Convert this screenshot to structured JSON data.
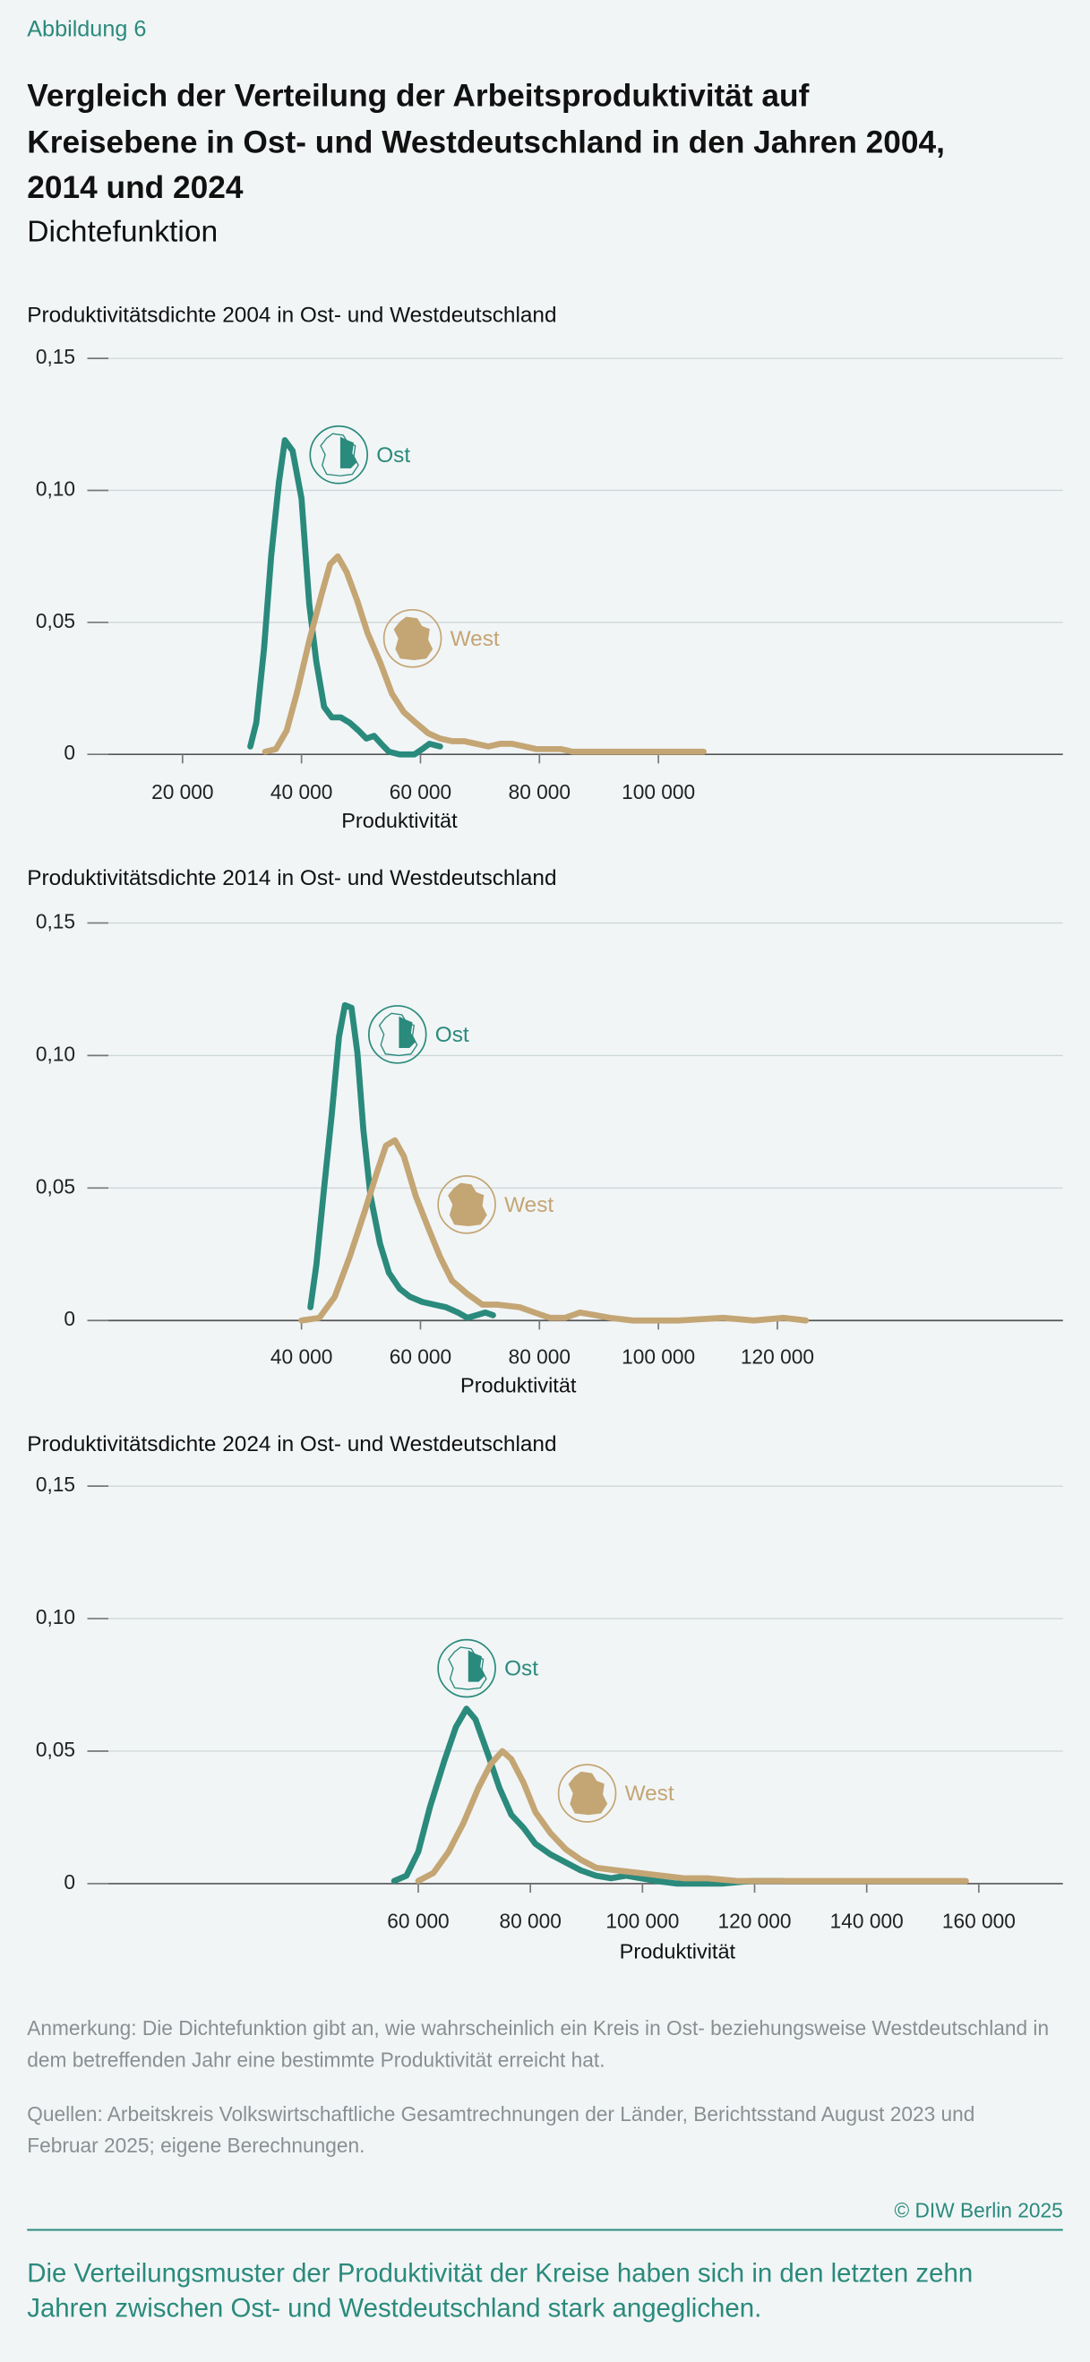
{
  "figure_label": "Abbildung 6",
  "title_lines": [
    "Vergleich der Verteilung der Arbeitsproduktivität auf",
    "Kreisebene in Ost- und Westdeutschland in den Jahren 2004,",
    "2014 und 2024"
  ],
  "subtitle": "Dichtefunktion",
  "chart_data": [
    {
      "type": "line",
      "title": "Produktivitätsdichte 2004 in Ost- und Westdeutschland",
      "xlabel": "Produktivität",
      "xlim": [
        4500,
        168000
      ],
      "ylim": [
        0,
        0.15
      ],
      "xticks": [
        {
          "value": 20000,
          "label": "20 000"
        },
        {
          "value": 40000,
          "label": "40 000"
        },
        {
          "value": 60000,
          "label": "60 000"
        },
        {
          "value": 80000,
          "label": "80 000"
        },
        {
          "value": 100000,
          "label": "100 000"
        }
      ],
      "yticks": [
        0,
        {
          "value": 0.05,
          "label": "0,05"
        },
        {
          "value": 0.1,
          "label": "0,10"
        },
        {
          "value": 0.15,
          "label": "0,15"
        }
      ],
      "grid": true,
      "series": [
        {
          "name": "Ost",
          "color": "#2a8a7c",
          "x": [
            31400,
            32400,
            33700,
            34900,
            36200,
            37200,
            38500,
            40000,
            41300,
            42500,
            43800,
            45100,
            46600,
            48100,
            49600,
            50900,
            52200,
            53400,
            54700,
            56500,
            59000,
            60300,
            61500,
            63300
          ],
          "values": [
            0.003,
            0.012,
            0.04,
            0.075,
            0.103,
            0.119,
            0.115,
            0.097,
            0.057,
            0.035,
            0.018,
            0.014,
            0.014,
            0.012,
            0.009,
            0.006,
            0.007,
            0.004,
            0.001,
            0,
            0,
            0.002,
            0.004,
            0.003
          ]
        },
        {
          "name": "West",
          "color": "#c4a574",
          "x": [
            33900,
            35700,
            37500,
            39200,
            41300,
            43300,
            44800,
            46100,
            47600,
            49400,
            51100,
            53200,
            55200,
            57200,
            59200,
            61300,
            63300,
            65300,
            67300,
            69400,
            71400,
            73400,
            75400,
            77500,
            79500,
            81500,
            83600,
            85600,
            90600,
            98200,
            103300,
            105800,
            107600
          ],
          "values": [
            0.001,
            0.002,
            0.009,
            0.023,
            0.043,
            0.06,
            0.072,
            0.075,
            0.069,
            0.058,
            0.046,
            0.035,
            0.023,
            0.016,
            0.012,
            0.008,
            0.006,
            0.005,
            0.005,
            0.004,
            0.003,
            0.004,
            0.004,
            0.003,
            0.002,
            0.002,
            0.002,
            0.001,
            0.001,
            0.001,
            0.001,
            0.001,
            0.001
          ]
        }
      ]
    },
    {
      "type": "line",
      "title": "Produktivitätsdichte 2014 in Ost- und Westdeutschland",
      "xlabel": "Produktivität",
      "xlim": [
        4500,
        168000
      ],
      "ylim": [
        0,
        0.15
      ],
      "xticks": [
        {
          "value": 40000,
          "label": "40 000"
        },
        {
          "value": 60000,
          "label": "60 000"
        },
        {
          "value": 80000,
          "label": "80 000"
        },
        {
          "value": 100000,
          "label": "100 000"
        },
        {
          "value": 120000,
          "label": "120 000"
        }
      ],
      "yticks": [
        0,
        {
          "value": 0.05,
          "label": "0,05"
        },
        {
          "value": 0.1,
          "label": "0,10"
        },
        {
          "value": 0.15,
          "label": "0,15"
        }
      ],
      "grid": true,
      "series": [
        {
          "name": "Ost",
          "color": "#2a8a7c",
          "x": [
            41500,
            42500,
            43800,
            45100,
            46300,
            47300,
            48400,
            49400,
            50400,
            51600,
            53200,
            54700,
            56500,
            58200,
            60300,
            62300,
            64300,
            66300,
            67900,
            69400,
            70900,
            72200
          ],
          "values": [
            0.005,
            0.021,
            0.05,
            0.078,
            0.107,
            0.119,
            0.118,
            0.101,
            0.072,
            0.047,
            0.029,
            0.018,
            0.012,
            0.009,
            0.007,
            0.006,
            0.005,
            0.003,
            0.001,
            0.002,
            0.003,
            0.002
          ]
        },
        {
          "name": "West",
          "color": "#c4a574",
          "x": [
            40000,
            43000,
            45600,
            48100,
            50600,
            52700,
            54200,
            55700,
            57200,
            59200,
            61300,
            63300,
            65300,
            67900,
            70400,
            72900,
            76700,
            79200,
            81800,
            84300,
            86800,
            89400,
            91900,
            95700,
            103300,
            110900,
            116000,
            121100,
            124800
          ],
          "values": [
            0,
            0.001,
            0.009,
            0.024,
            0.041,
            0.056,
            0.066,
            0.068,
            0.062,
            0.047,
            0.035,
            0.024,
            0.015,
            0.01,
            0.006,
            0.006,
            0.005,
            0.003,
            0.001,
            0.001,
            0.003,
            0.002,
            0.001,
            0,
            0,
            0.001,
            0,
            0.001,
            0
          ]
        }
      ]
    },
    {
      "type": "line",
      "title": "Produktivitätsdichte 2024 in Ost- und Westdeutschland",
      "xlabel": "Produktivität",
      "xlim": [
        1500,
        175000
      ],
      "ylim": [
        0,
        0.15
      ],
      "xticks": [
        {
          "value": 60000,
          "label": "60 000"
        },
        {
          "value": 80000,
          "label": "80 000"
        },
        {
          "value": 100000,
          "label": "100 000"
        },
        {
          "value": 120000,
          "label": "120 000"
        },
        {
          "value": 140000,
          "label": "140 000"
        },
        {
          "value": 160000,
          "label": "160 000"
        }
      ],
      "yticks": [
        0,
        {
          "value": 0.05,
          "label": "0,05"
        },
        {
          "value": 0.1,
          "label": "0,10"
        },
        {
          "value": 0.15,
          "label": "0,15"
        }
      ],
      "grid": true,
      "series": [
        {
          "name": "Ost",
          "color": "#2a8a7c",
          "x": [
            55700,
            57900,
            60000,
            62100,
            64600,
            66700,
            68600,
            70200,
            72400,
            74500,
            76600,
            78800,
            80900,
            83600,
            86300,
            89000,
            91700,
            94400,
            97100,
            99700,
            102400,
            106200,
            114200,
            119600,
            125000
          ],
          "values": [
            0.001,
            0.003,
            0.012,
            0.029,
            0.046,
            0.059,
            0.066,
            0.062,
            0.049,
            0.036,
            0.026,
            0.021,
            0.015,
            0.011,
            0.008,
            0.005,
            0.003,
            0.002,
            0.003,
            0.002,
            0.001,
            0,
            0,
            0.001,
            0.001
          ]
        },
        {
          "name": "West",
          "color": "#c4a574",
          "x": [
            60000,
            62700,
            65400,
            68100,
            70700,
            72900,
            75000,
            76600,
            78800,
            80900,
            83600,
            86300,
            89000,
            91700,
            95400,
            99500,
            103500,
            107500,
            111600,
            116900,
            122300,
            127700,
            133000,
            138400,
            143800,
            149100,
            157700
          ],
          "values": [
            0.001,
            0.004,
            0.012,
            0.023,
            0.036,
            0.045,
            0.05,
            0.047,
            0.038,
            0.027,
            0.019,
            0.013,
            0.009,
            0.006,
            0.005,
            0.004,
            0.003,
            0.002,
            0.002,
            0.001,
            0.001,
            0.001,
            0.001,
            0.001,
            0.001,
            0.001,
            0.001
          ]
        }
      ]
    }
  ],
  "note_lines": [
    "Anmerkung: Die Dichtefunktion gibt an, wie wahrscheinlich ein Kreis in Ost- beziehungsweise  Westdeutschland in",
    "dem betreffenden Jahr eine bestimmte Produktivität erreicht hat."
  ],
  "source_lines": [
    "Quellen: Arbeitskreis Volkswirtschaftliche Gesamtrechnungen der Länder, Berichtsstand August 2023 und",
    "Februar 2025; eigene Berechnungen."
  ],
  "copyright": "© DIW Berlin 2025",
  "summary_lines": [
    "Die Verteilungsmuster der Produktivität der Kreise haben sich in den letzten zehn",
    "Jahren zwischen Ost- und Westdeutschland stark angeglichen."
  ]
}
